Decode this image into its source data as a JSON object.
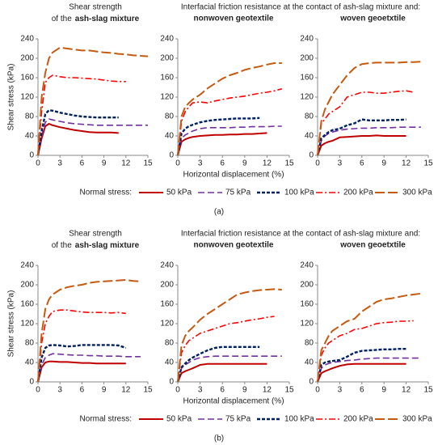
{
  "panels": [
    {
      "label": "(a)",
      "left_header": [
        "Shear strength",
        "of the"
      ],
      "shared_header": "Interfacial friction resistance at the contact of ash-slag mixture and:",
      "x_label": "Horizontal displacement (%)",
      "y_label": "Shear stress (kPa)",
      "legend_title": "Normal stress:"
    },
    {
      "label": "(b)",
      "left_header": [
        "Shear strength",
        "of the"
      ],
      "shared_header": "Interfacial friction resistance at the contact of ash-slag mixture and:",
      "x_label": "Horizontal displacement (%)",
      "y_label": "Shear stress (kPa)",
      "legend_title": "Normal stress:"
    }
  ],
  "chart_data": [
    {
      "type": "line",
      "title": "ash-slag mixture",
      "x": [
        0,
        0.5,
        1,
        1.5,
        2,
        3,
        4,
        5,
        6,
        7,
        8,
        9,
        10,
        11,
        12,
        13,
        14,
        15
      ],
      "xlim": [
        0,
        15
      ],
      "xticks": [
        0,
        3,
        6,
        9,
        12,
        15
      ],
      "ylim": [
        0,
        240
      ],
      "yticks": [
        0,
        40,
        80,
        120,
        160,
        200,
        240
      ],
      "grid": false,
      "series": [
        {
          "name": "50 kPa",
          "color": "#c00000",
          "style": "solid",
          "values": [
            0,
            35,
            60,
            65,
            62,
            58,
            55,
            52,
            50,
            48,
            47,
            47,
            47,
            46,
            null,
            null,
            null,
            null
          ]
        },
        {
          "name": "75 kPa",
          "color": "#7030a0",
          "style": "dashed",
          "values": [
            0,
            40,
            68,
            75,
            73,
            70,
            67,
            65,
            64,
            63,
            62,
            62,
            62,
            62,
            62,
            62,
            62,
            62
          ]
        },
        {
          "name": "100 kPa",
          "color": "#002060",
          "style": "dotted",
          "values": [
            0,
            50,
            85,
            93,
            92,
            88,
            85,
            82,
            80,
            79,
            78,
            78,
            78,
            78,
            null,
            null,
            null,
            null
          ]
        },
        {
          "name": "200 kPa",
          "color": "#ff0000",
          "style": "dashdot",
          "values": [
            0,
            90,
            150,
            160,
            165,
            162,
            160,
            160,
            159,
            158,
            157,
            155,
            153,
            152,
            152,
            null,
            null,
            null
          ]
        },
        {
          "name": "300 kPa",
          "color": "#c55a11",
          "style": "longdash",
          "values": [
            0,
            120,
            170,
            200,
            212,
            222,
            220,
            218,
            216,
            216,
            214,
            212,
            211,
            209,
            208,
            206,
            205,
            204
          ]
        }
      ]
    },
    {
      "type": "line",
      "title": "nonwoven geotextile",
      "x": [
        0,
        0.5,
        1,
        1.5,
        2,
        3,
        4,
        5,
        6,
        7,
        8,
        9,
        10,
        11,
        12,
        13,
        14,
        15
      ],
      "xlim": [
        0,
        15
      ],
      "xticks": [
        0,
        3,
        6,
        9,
        12,
        15
      ],
      "ylim": [
        0,
        240
      ],
      "yticks": [
        0,
        40,
        80,
        120,
        160,
        200,
        240
      ],
      "grid": false,
      "series": [
        {
          "name": "50 kPa",
          "color": "#c00000",
          "style": "solid",
          "values": [
            0,
            28,
            33,
            36,
            38,
            40,
            41,
            42,
            42,
            43,
            43,
            44,
            44,
            45,
            46,
            null,
            null,
            null
          ]
        },
        {
          "name": "75 kPa",
          "color": "#7030a0",
          "style": "dashed",
          "values": [
            0,
            35,
            42,
            46,
            50,
            55,
            57,
            57,
            57,
            57,
            58,
            58,
            59,
            59,
            59,
            60,
            60,
            null
          ]
        },
        {
          "name": "100 kPa",
          "color": "#002060",
          "style": "dotted",
          "values": [
            0,
            45,
            55,
            60,
            63,
            68,
            71,
            73,
            74,
            75,
            76,
            76,
            76,
            77,
            null,
            null,
            null,
            null
          ]
        },
        {
          "name": "200 kPa",
          "color": "#ff0000",
          "style": "dashdot",
          "values": [
            0,
            70,
            90,
            100,
            108,
            110,
            108,
            112,
            115,
            118,
            120,
            122,
            125,
            128,
            130,
            133,
            137,
            null
          ]
        },
        {
          "name": "300 kPa",
          "color": "#c55a11",
          "style": "longdash",
          "values": [
            0,
            80,
            100,
            108,
            115,
            125,
            138,
            148,
            158,
            165,
            170,
            176,
            180,
            183,
            187,
            190,
            190,
            null
          ]
        }
      ]
    },
    {
      "type": "line",
      "title": "woven geoetxtile",
      "x": [
        0,
        0.5,
        1,
        1.5,
        2,
        3,
        4,
        5,
        6,
        7,
        8,
        9,
        10,
        11,
        12,
        13,
        14,
        15
      ],
      "xlim": [
        0,
        15
      ],
      "xticks": [
        0,
        3,
        6,
        9,
        12,
        15
      ],
      "ylim": [
        0,
        240
      ],
      "yticks": [
        0,
        40,
        80,
        120,
        160,
        200,
        240
      ],
      "grid": false,
      "series": [
        {
          "name": "50 kPa",
          "color": "#c00000",
          "style": "solid",
          "values": [
            0,
            20,
            25,
            28,
            30,
            37,
            38,
            39,
            40,
            40,
            41,
            40,
            40,
            40,
            40,
            null,
            null,
            null
          ]
        },
        {
          "name": "75 kPa",
          "color": "#7030a0",
          "style": "dashed",
          "values": [
            0,
            30,
            40,
            45,
            48,
            52,
            54,
            55,
            56,
            56,
            57,
            57,
            57,
            58,
            58,
            58,
            58,
            null
          ]
        },
        {
          "name": "100 kPa",
          "color": "#002060",
          "style": "dotted",
          "values": [
            0,
            35,
            42,
            48,
            52,
            55,
            62,
            66,
            74,
            72,
            72,
            72,
            73,
            73,
            74,
            null,
            null,
            null
          ]
        },
        {
          "name": "200 kPa",
          "color": "#ff0000",
          "style": "dashdot",
          "values": [
            0,
            65,
            75,
            85,
            90,
            100,
            120,
            125,
            130,
            130,
            128,
            128,
            130,
            132,
            133,
            130,
            null,
            null
          ]
        },
        {
          "name": "300 kPa",
          "color": "#c55a11",
          "style": "longdash",
          "values": [
            0,
            70,
            95,
            110,
            125,
            145,
            165,
            180,
            188,
            190,
            191,
            191,
            191,
            191,
            192,
            192,
            193,
            null
          ]
        }
      ]
    },
    {
      "type": "line",
      "title": "ash-slag mixture",
      "x": [
        0,
        0.5,
        1,
        1.5,
        2,
        3,
        4,
        5,
        6,
        7,
        8,
        9,
        10,
        11,
        12,
        13,
        14,
        15
      ],
      "xlim": [
        0,
        15
      ],
      "xticks": [
        0,
        3,
        6,
        9,
        12,
        15
      ],
      "ylim": [
        0,
        240
      ],
      "yticks": [
        0,
        40,
        80,
        120,
        160,
        200,
        240
      ],
      "grid": false,
      "series": [
        {
          "name": "50 kPa",
          "color": "#c00000",
          "style": "solid",
          "values": [
            0,
            30,
            40,
            42,
            42,
            41,
            41,
            40,
            39,
            39,
            38,
            38,
            38,
            38,
            38,
            null,
            null,
            null
          ]
        },
        {
          "name": "75 kPa",
          "color": "#7030a0",
          "style": "dashed",
          "values": [
            0,
            35,
            50,
            55,
            58,
            57,
            56,
            55,
            55,
            54,
            54,
            53,
            53,
            53,
            52,
            52,
            52,
            null
          ]
        },
        {
          "name": "100 kPa",
          "color": "#002060",
          "style": "dotted",
          "values": [
            0,
            50,
            70,
            75,
            76,
            75,
            73,
            74,
            76,
            76,
            76,
            76,
            76,
            75,
            70,
            null,
            null,
            null
          ]
        },
        {
          "name": "200 kPa",
          "color": "#ff0000",
          "style": "dashdot",
          "values": [
            0,
            80,
            120,
            135,
            145,
            148,
            148,
            146,
            144,
            143,
            143,
            143,
            142,
            143,
            141,
            null,
            null,
            null
          ]
        },
        {
          "name": "300 kPa",
          "color": "#c55a11",
          "style": "longdash",
          "values": [
            0,
            100,
            150,
            170,
            180,
            190,
            195,
            198,
            200,
            204,
            206,
            207,
            208,
            209,
            210,
            208,
            207,
            null
          ]
        }
      ]
    },
    {
      "type": "line",
      "title": "nonwoven geotextile",
      "x": [
        0,
        0.5,
        1,
        1.5,
        2,
        3,
        4,
        5,
        6,
        7,
        8,
        9,
        10,
        11,
        12,
        13,
        14,
        15
      ],
      "xlim": [
        0,
        15
      ],
      "xticks": [
        0,
        3,
        6,
        9,
        12,
        15
      ],
      "ylim": [
        0,
        240
      ],
      "yticks": [
        0,
        40,
        80,
        120,
        160,
        200,
        240
      ],
      "grid": false,
      "series": [
        {
          "name": "50 kPa",
          "color": "#c00000",
          "style": "solid",
          "values": [
            0,
            18,
            22,
            25,
            28,
            35,
            37,
            37,
            37,
            37,
            37,
            37,
            37,
            37,
            37,
            null,
            null,
            null
          ]
        },
        {
          "name": "75 kPa",
          "color": "#7030a0",
          "style": "dashed",
          "values": [
            0,
            28,
            35,
            40,
            45,
            50,
            52,
            53,
            53,
            53,
            53,
            53,
            53,
            53,
            53,
            53,
            53,
            null
          ]
        },
        {
          "name": "100 kPa",
          "color": "#002060",
          "style": "dotted",
          "values": [
            0,
            30,
            38,
            45,
            50,
            58,
            65,
            70,
            72,
            72,
            72,
            72,
            72,
            72,
            null,
            null,
            null,
            null
          ]
        },
        {
          "name": "200 kPa",
          "color": "#ff0000",
          "style": "dashdot",
          "values": [
            0,
            60,
            75,
            85,
            90,
            100,
            105,
            110,
            115,
            120,
            122,
            125,
            128,
            130,
            133,
            135,
            null,
            null
          ]
        },
        {
          "name": "300 kPa",
          "color": "#c55a11",
          "style": "longdash",
          "values": [
            0,
            75,
            95,
            105,
            112,
            128,
            140,
            150,
            160,
            170,
            180,
            184,
            187,
            189,
            190,
            191,
            190,
            null
          ]
        }
      ]
    },
    {
      "type": "line",
      "title": "woven geoetxtile",
      "x": [
        0,
        0.5,
        1,
        1.5,
        2,
        3,
        4,
        5,
        6,
        7,
        8,
        9,
        10,
        11,
        12,
        13,
        14,
        15
      ],
      "xlim": [
        0,
        15
      ],
      "xticks": [
        0,
        3,
        6,
        9,
        12,
        15
      ],
      "ylim": [
        0,
        240
      ],
      "yticks": [
        0,
        40,
        80,
        120,
        160,
        200,
        240
      ],
      "grid": false,
      "series": [
        {
          "name": "50 kPa",
          "color": "#c00000",
          "style": "solid",
          "values": [
            0,
            18,
            22,
            25,
            28,
            33,
            36,
            37,
            37,
            37,
            37,
            37,
            37,
            37,
            37,
            null,
            null,
            null
          ]
        },
        {
          "name": "75 kPa",
          "color": "#7030a0",
          "style": "dashed",
          "values": [
            0,
            28,
            35,
            38,
            40,
            42,
            44,
            45,
            47,
            48,
            49,
            49,
            49,
            49,
            49,
            49,
            49,
            null
          ]
        },
        {
          "name": "100 kPa",
          "color": "#002060",
          "style": "dotted",
          "values": [
            0,
            35,
            40,
            42,
            43,
            45,
            52,
            60,
            64,
            65,
            66,
            67,
            67,
            68,
            68,
            null,
            null,
            null
          ]
        },
        {
          "name": "200 kPa",
          "color": "#ff0000",
          "style": "dashdot",
          "values": [
            0,
            55,
            70,
            80,
            85,
            95,
            100,
            108,
            110,
            115,
            120,
            122,
            123,
            125,
            125,
            126,
            null,
            null
          ]
        },
        {
          "name": "300 kPa",
          "color": "#c55a11",
          "style": "longdash",
          "values": [
            0,
            65,
            80,
            95,
            105,
            115,
            125,
            130,
            145,
            155,
            165,
            170,
            172,
            175,
            178,
            180,
            182,
            null
          ]
        }
      ]
    }
  ]
}
